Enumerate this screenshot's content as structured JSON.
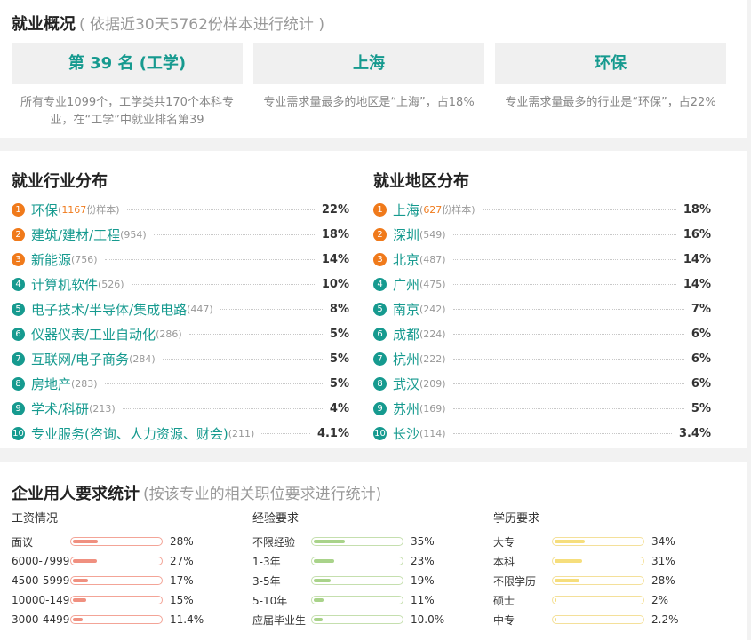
{
  "overview": {
    "title": "就业概况",
    "subtitle": "( 依据近30天5762份样本进行统计 )",
    "boxes": [
      {
        "label": "第 39 名 (工学)",
        "desc": "所有专业1099个，工学类共170个本科专业，在“工学”中就业排名第39"
      },
      {
        "label": "上海",
        "desc": "专业需求量最多的地区是“上海”，占18%"
      },
      {
        "label": "环保",
        "desc": "专业需求量最多的行业是“环保”，占22%"
      }
    ]
  },
  "industry": {
    "title": "就业行业分布",
    "items": [
      {
        "rank": "1",
        "name": "环保",
        "count": "(1167份样本)",
        "count_num": "1167",
        "count_suffix": "份样本)",
        "pct": "22%"
      },
      {
        "rank": "2",
        "name": "建筑/建材/工程",
        "count": "(954)",
        "pct": "18%"
      },
      {
        "rank": "3",
        "name": "新能源",
        "count": "(756)",
        "pct": "14%"
      },
      {
        "rank": "4",
        "name": "计算机软件",
        "count": "(526)",
        "pct": "10%"
      },
      {
        "rank": "5",
        "name": "电子技术/半导体/集成电路",
        "count": "(447)",
        "pct": "8%"
      },
      {
        "rank": "6",
        "name": "仪器仪表/工业自动化",
        "count": "(286)",
        "pct": "5%"
      },
      {
        "rank": "7",
        "name": "互联网/电子商务",
        "count": "(284)",
        "pct": "5%"
      },
      {
        "rank": "8",
        "name": "房地产",
        "count": "(283)",
        "pct": "5%"
      },
      {
        "rank": "9",
        "name": "学术/科研",
        "count": "(213)",
        "pct": "4%"
      },
      {
        "rank": "10",
        "name": "专业服务(咨询、人力资源、财会)",
        "count": "(211)",
        "pct": "4.1%"
      }
    ]
  },
  "region": {
    "title": "就业地区分布",
    "items": [
      {
        "rank": "1",
        "name": "上海",
        "count": "(627份样本)",
        "count_num": "627",
        "count_suffix": "份样本)",
        "pct": "18%"
      },
      {
        "rank": "2",
        "name": "深圳",
        "count": "(549)",
        "pct": "16%"
      },
      {
        "rank": "3",
        "name": "北京",
        "count": "(487)",
        "pct": "14%"
      },
      {
        "rank": "4",
        "name": "广州",
        "count": "(475)",
        "pct": "14%"
      },
      {
        "rank": "5",
        "name": "南京",
        "count": "(242)",
        "pct": "7%"
      },
      {
        "rank": "6",
        "name": "成都",
        "count": "(224)",
        "pct": "6%"
      },
      {
        "rank": "7",
        "name": "杭州",
        "count": "(222)",
        "pct": "6%"
      },
      {
        "rank": "8",
        "name": "武汉",
        "count": "(209)",
        "pct": "6%"
      },
      {
        "rank": "9",
        "name": "苏州",
        "count": "(169)",
        "pct": "5%"
      },
      {
        "rank": "10",
        "name": "长沙",
        "count": "(114)",
        "pct": "3.4%"
      }
    ]
  },
  "requirements": {
    "title": "企业用人要求统计",
    "subtitle": "(按该专业的相关职位要求进行统计)",
    "groups": [
      {
        "title": "工资情况",
        "kind": "salary",
        "items": [
          {
            "label": "面议",
            "pct": "28%",
            "value": 28
          },
          {
            "label": "6000-7999",
            "pct": "27%",
            "value": 27
          },
          {
            "label": "4500-5999",
            "pct": "17%",
            "value": 17
          },
          {
            "label": "10000-14999",
            "pct": "15%",
            "value": 15
          },
          {
            "label": "3000-4499",
            "pct": "11.4%",
            "value": 11.4
          }
        ]
      },
      {
        "title": "经验要求",
        "kind": "exp",
        "items": [
          {
            "label": "不限经验",
            "pct": "35%",
            "value": 35
          },
          {
            "label": "1-3年",
            "pct": "23%",
            "value": 23
          },
          {
            "label": "3-5年",
            "pct": "19%",
            "value": 19
          },
          {
            "label": "5-10年",
            "pct": "11%",
            "value": 11
          },
          {
            "label": "应届毕业生",
            "pct": "10.0%",
            "value": 10
          }
        ]
      },
      {
        "title": "学历要求",
        "kind": "edu",
        "items": [
          {
            "label": "大专",
            "pct": "34%",
            "value": 34
          },
          {
            "label": "本科",
            "pct": "31%",
            "value": 31
          },
          {
            "label": "不限学历",
            "pct": "28%",
            "value": 28
          },
          {
            "label": "硕士",
            "pct": "2%",
            "value": 2
          },
          {
            "label": "中专",
            "pct": "2.2%",
            "value": 2.2
          }
        ]
      }
    ]
  },
  "colors": {
    "accent": "#169a8f",
    "hot": "#f07a1b"
  }
}
